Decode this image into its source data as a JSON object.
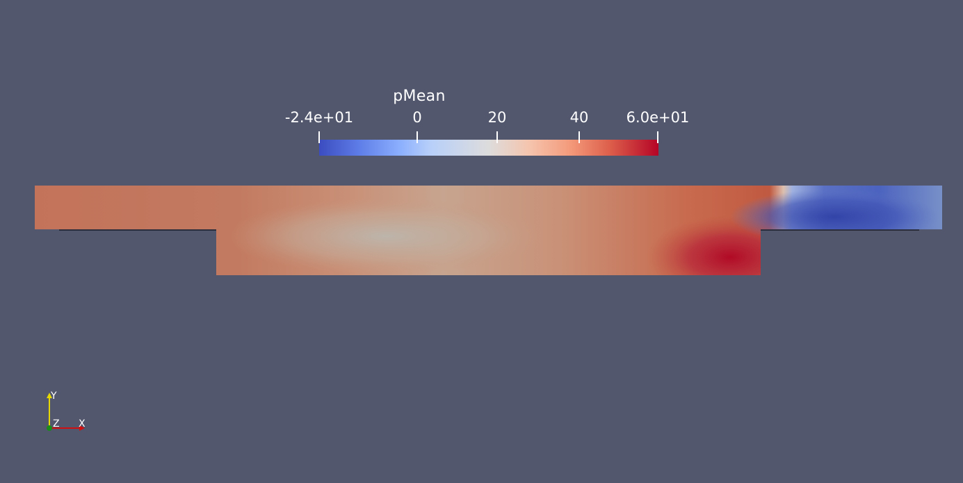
{
  "colorbar": {
    "title": "pMean",
    "ticks": [
      "-2.4e+01",
      "0",
      "20",
      "40",
      "6.0e+01"
    ],
    "range": [
      -24,
      60
    ],
    "colormap": "cool-to-warm"
  },
  "field_colors": {
    "background": "#52576e",
    "warm": "#c5765b",
    "hot": "#b40426",
    "neutral": "#c0b3a6",
    "cold": "#3d4fb0"
  },
  "axes": {
    "x": "X",
    "y": "Y",
    "z": "Z"
  }
}
